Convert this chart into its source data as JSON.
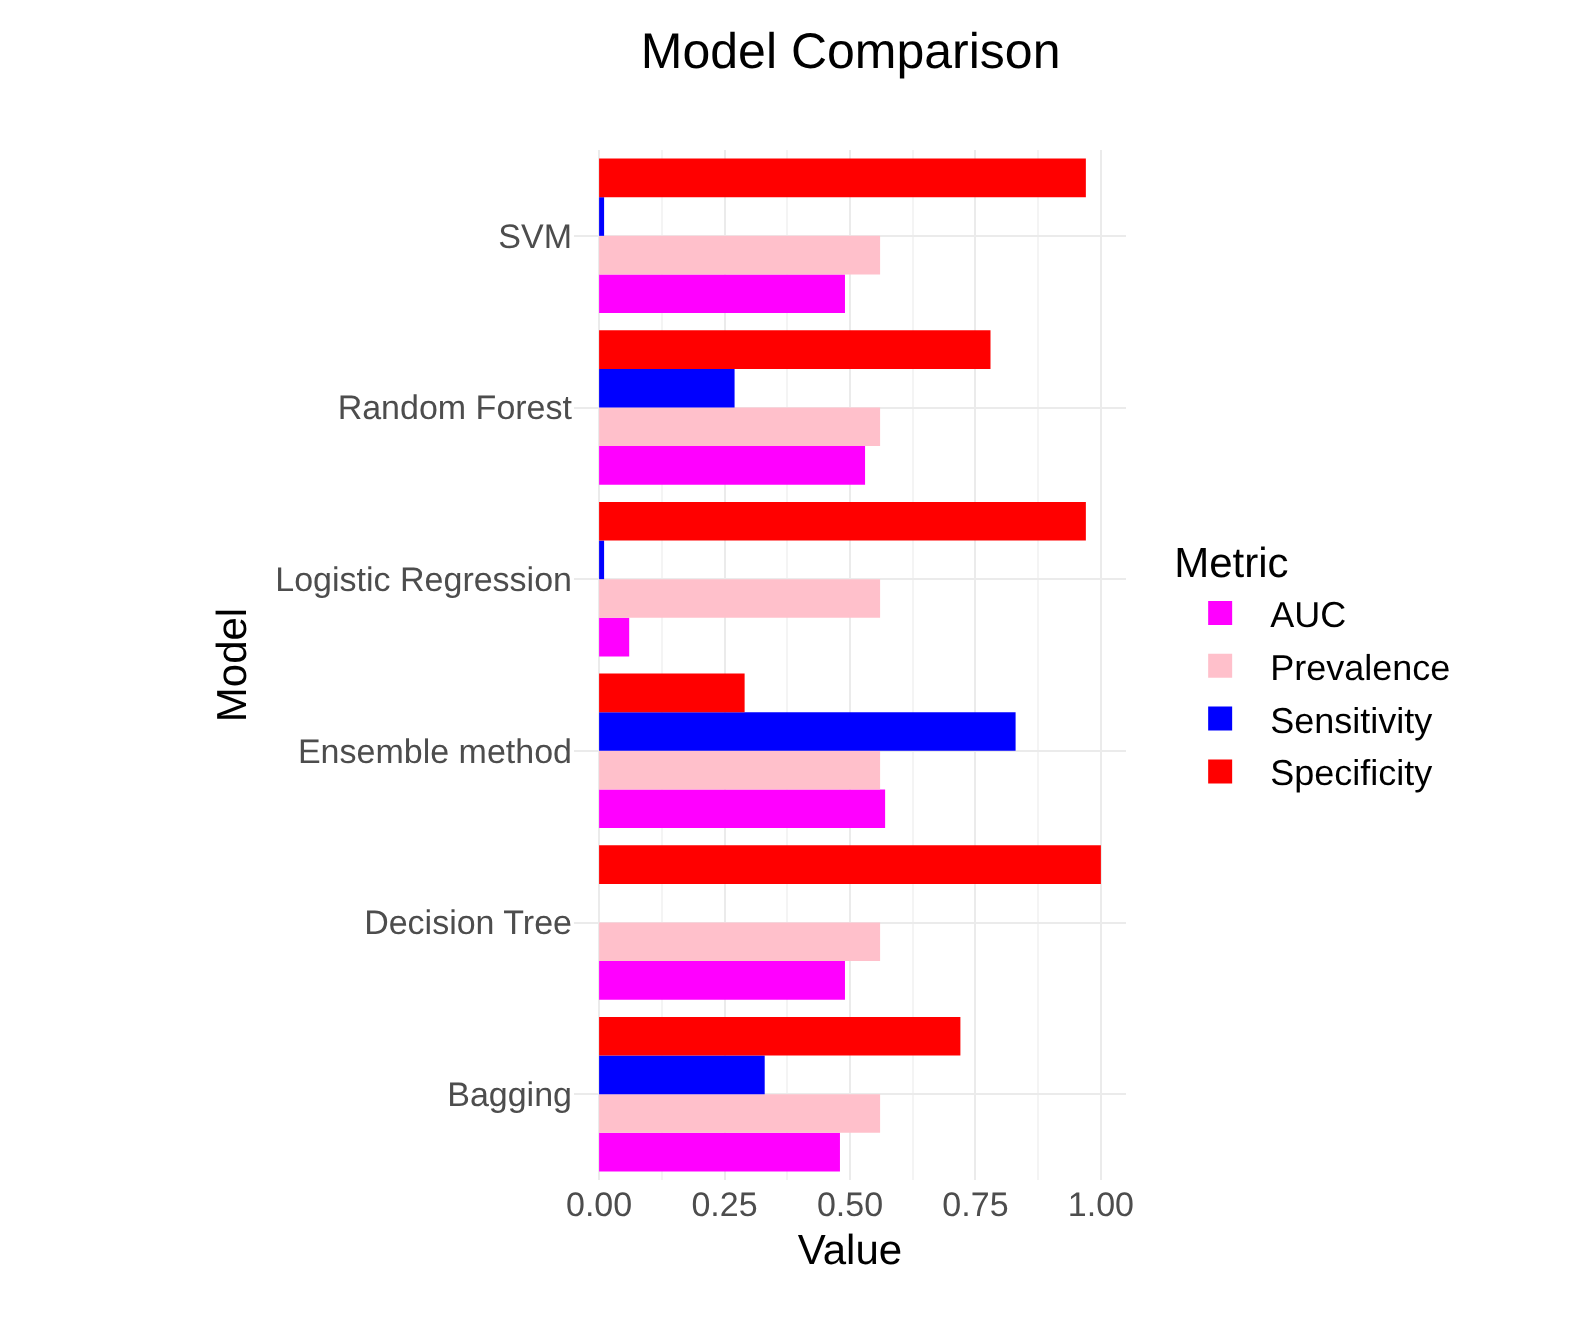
{
  "chart_data": {
    "type": "bar",
    "orientation": "horizontal",
    "title": "Model Comparison",
    "xlabel": "Value",
    "ylabel": "Model",
    "legend_title": "Metric",
    "categories": [
      "SVM",
      "Random Forest",
      "Logistic Regression",
      "Ensemble method",
      "Decision Tree",
      "Bagging"
    ],
    "series": [
      {
        "name": "AUC",
        "color": "#ff00ff",
        "values": [
          0.49,
          0.53,
          0.06,
          0.57,
          0.49,
          0.48
        ]
      },
      {
        "name": "Prevalence",
        "color": "#ffc0cb",
        "values": [
          0.56,
          0.56,
          0.56,
          0.56,
          0.56,
          0.56
        ]
      },
      {
        "name": "Sensitivity",
        "color": "#0000ff",
        "values": [
          0.01,
          0.27,
          0.01,
          0.83,
          0,
          0.33
        ]
      },
      {
        "name": "Specificity",
        "color": "#ff0000",
        "values": [
          0.97,
          0.78,
          0.97,
          0.29,
          1.0,
          0.72
        ]
      }
    ],
    "xlim": [
      -0.05,
      1.05
    ],
    "xticks": [
      {
        "value": 0,
        "label": "0.00"
      },
      {
        "value": 0.25,
        "label": "0.25"
      },
      {
        "value": 0.5,
        "label": "0.50"
      },
      {
        "value": 0.75,
        "label": "0.75"
      },
      {
        "value": 1,
        "label": "1.00"
      }
    ],
    "grid": true,
    "legend": "right"
  }
}
